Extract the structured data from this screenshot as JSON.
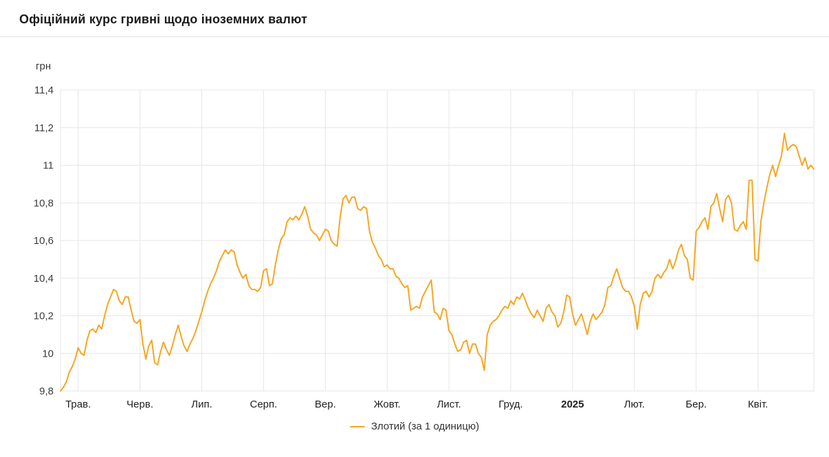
{
  "header": {
    "title": "Офіційний курс гривні щодо іноземних валют"
  },
  "chart_data": {
    "type": "line",
    "title": "Офіційний курс гривні щодо іноземних валют",
    "ylabel": "грн",
    "xlabel": "",
    "ylim": [
      9.8,
      11.4
    ],
    "grid": true,
    "legend_position": "bottom-center",
    "y_tick_labels": [
      "9,8",
      "10",
      "10,2",
      "10,4",
      "10,6",
      "10,8",
      "11",
      "11,2",
      "11,4"
    ],
    "x_tick_labels": [
      "Трав.",
      "Черв.",
      "Лип.",
      "Серп.",
      "Вер.",
      "Жовт.",
      "Лист.",
      "Груд.",
      "2025",
      "Лют.",
      "Бер.",
      "Квіт."
    ],
    "x_tick_indices": [
      6,
      27,
      48,
      69,
      90,
      111,
      132,
      153,
      174,
      195,
      216,
      237
    ],
    "bold_x_label": "2025",
    "legend": {
      "label": "Злотий (за 1 одиницю)",
      "color": "#f5a623"
    },
    "colors": {
      "line": "#f5a623",
      "grid": "#e6e6e6",
      "text": "#333333"
    },
    "series": [
      {
        "name": "Злотий (за 1 одиницю)",
        "color": "#f5a623",
        "values": [
          9.8,
          9.82,
          9.85,
          9.9,
          9.93,
          9.97,
          10.03,
          10.0,
          9.99,
          10.07,
          10.12,
          10.13,
          10.11,
          10.15,
          10.13,
          10.2,
          10.26,
          10.3,
          10.34,
          10.33,
          10.28,
          10.26,
          10.3,
          10.3,
          10.23,
          10.17,
          10.16,
          10.18,
          10.05,
          9.97,
          10.04,
          10.07,
          9.95,
          9.94,
          10.01,
          10.06,
          10.02,
          9.99,
          10.04,
          10.1,
          10.15,
          10.09,
          10.04,
          10.01,
          10.05,
          10.08,
          10.12,
          10.17,
          10.22,
          10.28,
          10.33,
          10.37,
          10.4,
          10.44,
          10.49,
          10.52,
          10.55,
          10.53,
          10.55,
          10.54,
          10.47,
          10.43,
          10.4,
          10.42,
          10.36,
          10.34,
          10.34,
          10.33,
          10.35,
          10.44,
          10.45,
          10.36,
          10.37,
          10.47,
          10.55,
          10.61,
          10.63,
          10.7,
          10.72,
          10.71,
          10.73,
          10.71,
          10.74,
          10.78,
          10.73,
          10.66,
          10.64,
          10.63,
          10.6,
          10.63,
          10.66,
          10.65,
          10.6,
          10.58,
          10.57,
          10.72,
          10.82,
          10.84,
          10.8,
          10.83,
          10.83,
          10.77,
          10.76,
          10.78,
          10.77,
          10.65,
          10.59,
          10.56,
          10.52,
          10.5,
          10.46,
          10.47,
          10.45,
          10.45,
          10.41,
          10.4,
          10.37,
          10.35,
          10.36,
          10.23,
          10.24,
          10.25,
          10.24,
          10.3,
          10.33,
          10.36,
          10.39,
          10.22,
          10.21,
          10.18,
          10.24,
          10.23,
          10.12,
          10.1,
          10.05,
          10.01,
          10.02,
          10.06,
          10.07,
          10.0,
          10.05,
          10.05,
          10.0,
          9.98,
          9.91,
          10.1,
          10.15,
          10.17,
          10.18,
          10.2,
          10.23,
          10.25,
          10.24,
          10.28,
          10.26,
          10.3,
          10.29,
          10.32,
          10.28,
          10.24,
          10.21,
          10.19,
          10.23,
          10.2,
          10.17,
          10.24,
          10.26,
          10.22,
          10.2,
          10.14,
          10.16,
          10.22,
          10.31,
          10.3,
          10.21,
          10.15,
          10.18,
          10.21,
          10.16,
          10.1,
          10.17,
          10.21,
          10.18,
          10.2,
          10.22,
          10.26,
          10.35,
          10.36,
          10.41,
          10.45,
          10.4,
          10.35,
          10.33,
          10.33,
          10.3,
          10.25,
          10.13,
          10.26,
          10.32,
          10.33,
          10.3,
          10.33,
          10.4,
          10.42,
          10.4,
          10.43,
          10.45,
          10.5,
          10.45,
          10.49,
          10.55,
          10.58,
          10.52,
          10.5,
          10.4,
          10.39,
          10.65,
          10.67,
          10.7,
          10.72,
          10.66,
          10.78,
          10.8,
          10.85,
          10.77,
          10.7,
          10.82,
          10.84,
          10.8,
          10.66,
          10.65,
          10.68,
          10.7,
          10.66,
          10.92,
          10.92,
          10.5,
          10.49,
          10.7,
          10.8,
          10.88,
          10.95,
          11.0,
          10.94,
          11.0,
          11.05,
          11.17,
          11.08,
          11.1,
          11.11,
          11.1,
          11.05,
          11.0,
          11.04,
          10.98,
          11.0,
          10.98
        ]
      }
    ]
  }
}
